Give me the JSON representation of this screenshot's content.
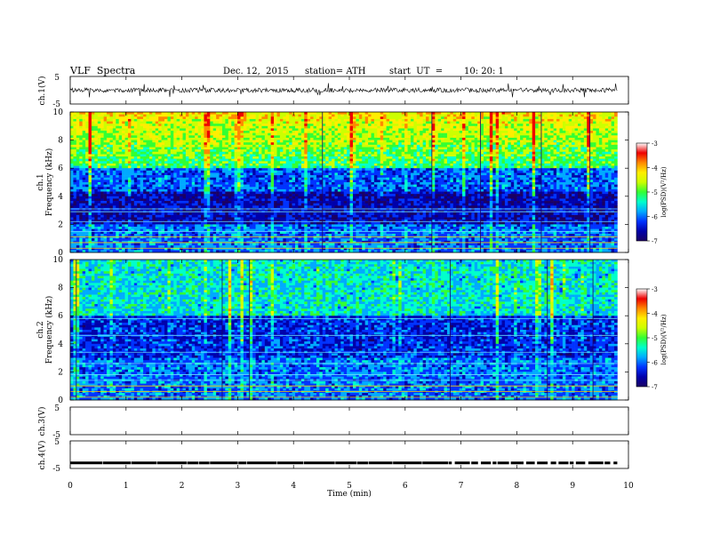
{
  "header": {
    "title": "VLF  Spectra",
    "date": "Dec. 12,  2015",
    "station": "station= ATH",
    "start_label": "start  UT  =",
    "start_time": "10: 20: 1"
  },
  "colors": {
    "colormap": [
      "#1a0063",
      "#0000aa",
      "#0033ff",
      "#00aaff",
      "#00ffcc",
      "#33ff33",
      "#ccff00",
      "#ffee00",
      "#ff8800",
      "#ee0000",
      "#ffffff"
    ]
  },
  "chart_data": [
    {
      "type": "line",
      "panel": "ch1-waveform",
      "ylabel": "ch.1(V)",
      "ylim": [
        -5,
        5
      ],
      "yticks": [
        "5",
        "-5"
      ],
      "xlim": [
        0,
        10
      ],
      "series": [
        {
          "values_summary": "noisy VLF waveform centered near 0 V, amplitude about ±1 V"
        }
      ]
    },
    {
      "type": "heatmap",
      "panel": "ch1-spectrogram",
      "ylabel": "ch.1",
      "ylabel2": "Frequency  (kHz)",
      "ylim": [
        0,
        10
      ],
      "yticks": [
        "0",
        "2",
        "4",
        "6",
        "8",
        "10"
      ],
      "xlim": [
        0,
        9.8
      ],
      "colorbar": {
        "label": "log(PSD)(V²/Hz)",
        "range": [
          -7,
          -3
        ],
        "ticks": [
          "-3",
          "-4",
          "-5",
          "-6",
          "-7"
        ]
      }
    },
    {
      "type": "heatmap",
      "panel": "ch2-spectrogram",
      "ylabel": "ch.2",
      "ylabel2": "Frequency  (kHz)",
      "ylim": [
        0,
        10
      ],
      "yticks": [
        "0",
        "2",
        "4",
        "6",
        "8",
        "10"
      ],
      "xlim": [
        0,
        9.8
      ],
      "colorbar": {
        "label": "log(PSD)(V²/Hz)",
        "range": [
          -7,
          -3
        ],
        "ticks": [
          "-3",
          "-4",
          "-5",
          "-6",
          "-7"
        ]
      }
    },
    {
      "type": "line",
      "panel": "ch3-waveform",
      "ylabel": "ch.3(V)",
      "ylim": [
        -5,
        5
      ],
      "yticks": [
        "5",
        "-5"
      ],
      "series": []
    },
    {
      "type": "line",
      "panel": "ch4-waveform",
      "ylabel": "ch.4(V)",
      "ylim": [
        -5,
        5
      ],
      "yticks": [
        "5",
        "-5"
      ],
      "series": [
        {
          "values_summary": "flat trace at about -3 V with gaps after 6.5 min"
        }
      ]
    }
  ],
  "xaxis": {
    "label": "Time  (min)",
    "ticks": [
      "0",
      "1",
      "2",
      "3",
      "4",
      "5",
      "6",
      "7",
      "8",
      "9",
      "10"
    ],
    "range": [
      0,
      10
    ]
  }
}
